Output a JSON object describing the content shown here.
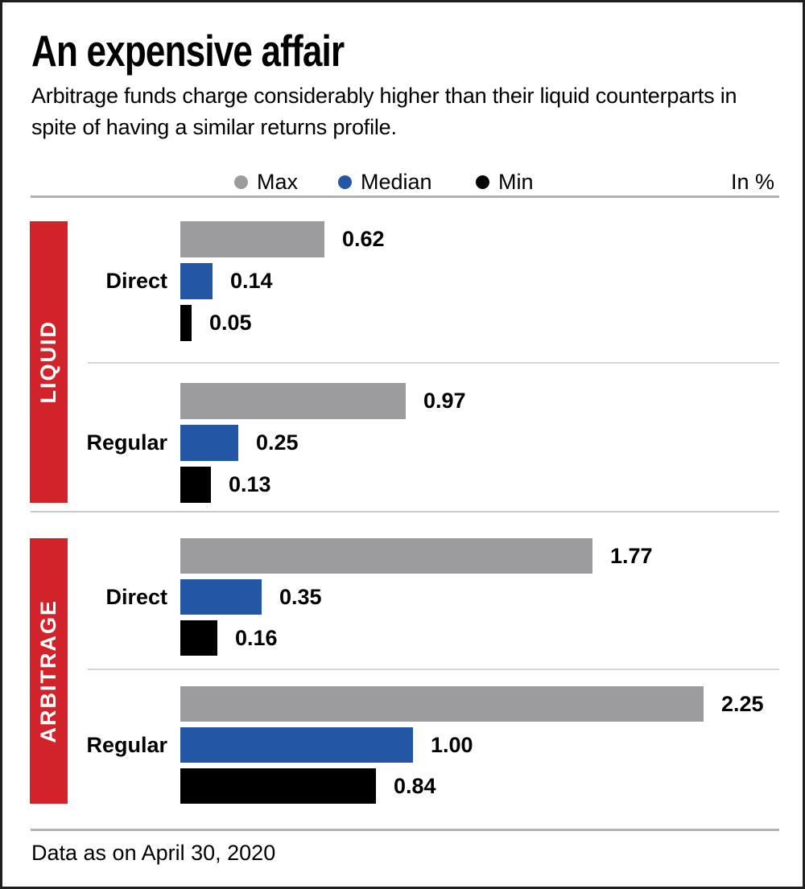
{
  "header": {
    "title": "An expensive affair",
    "subtitle_lines": [
      "Arbitrage funds charge considerably higher than their liquid counterparts in",
      "spite of having a similar returns profile."
    ]
  },
  "legend": {
    "items": [
      {
        "label": "Max",
        "color": "#9c9c9e"
      },
      {
        "label": "Median",
        "color": "#2356a4"
      },
      {
        "label": "Min",
        "color": "#000000"
      }
    ],
    "unit_label": "In %"
  },
  "chart_data": {
    "type": "bar",
    "orientation": "horizontal",
    "unit": "%",
    "series_names": [
      "Max",
      "Median",
      "Min"
    ],
    "value_range": [
      0,
      2.25
    ],
    "groups": [
      {
        "group": "LIQUID",
        "rows": [
          {
            "label": "Direct",
            "values": {
              "max": 0.62,
              "median": 0.14,
              "min": 0.05
            }
          },
          {
            "label": "Regular",
            "values": {
              "max": 0.97,
              "median": 0.25,
              "min": 0.13
            }
          }
        ]
      },
      {
        "group": "ARBITRAGE",
        "rows": [
          {
            "label": "Direct",
            "values": {
              "max": 1.77,
              "median": 0.35,
              "min": 0.16
            }
          },
          {
            "label": "Regular",
            "values": {
              "max": 2.25,
              "median": 1.0,
              "min": 0.84
            }
          }
        ]
      }
    ]
  },
  "colors": {
    "max_bar": "#9c9c9e",
    "median_bar": "#2356a4",
    "min_bar": "#000000",
    "group_label_bg": "#d2232a",
    "group_label_text": "#ffffff"
  },
  "footer": {
    "note": "Data as on April 30, 2020"
  }
}
